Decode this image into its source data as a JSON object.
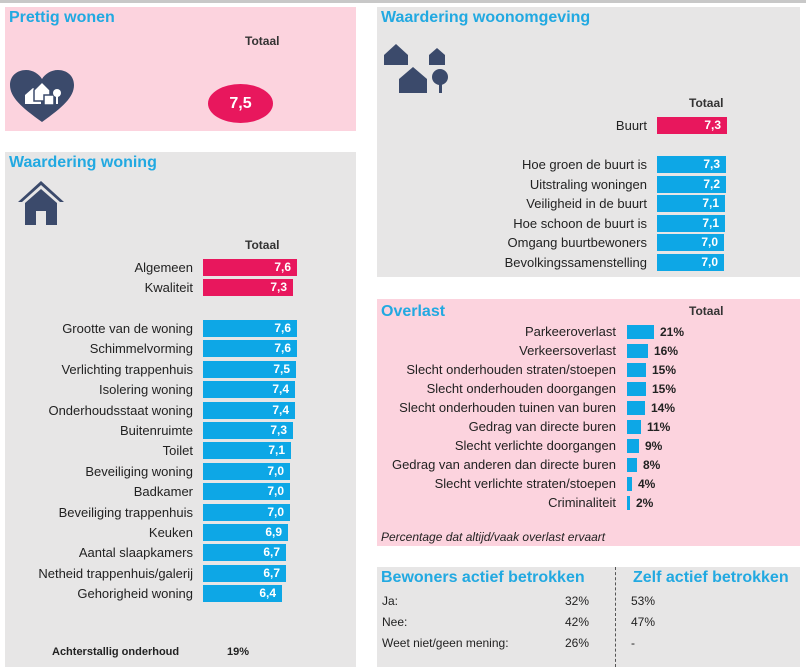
{
  "colors": {
    "title": "#22a9e1",
    "pink_bar": "#e8175d",
    "blue_bar": "#0da7e6",
    "pink_panel": "#fcd3de",
    "grey_panel": "#e7e6e6",
    "icon": "#3b4a6b"
  },
  "prettig": {
    "title": "Prettig wonen",
    "total_label": "Totaal",
    "value": "7,5",
    "icon": "heart-houses-icon"
  },
  "woning": {
    "title": "Waardering woning",
    "icon": "house-icon",
    "total_label": "Totaal",
    "top": [
      {
        "label": "Algemeen",
        "value": "7,6"
      },
      {
        "label": "Kwaliteit",
        "value": "7,3"
      }
    ],
    "items": [
      {
        "label": "Grootte van de woning",
        "value": "7,6"
      },
      {
        "label": "Schimmelvorming",
        "value": "7,6"
      },
      {
        "label": "Verlichting trappenhuis",
        "value": "7,5"
      },
      {
        "label": "Isolering woning",
        "value": "7,4"
      },
      {
        "label": "Onderhoudsstaat woning",
        "value": "7,4"
      },
      {
        "label": "Buitenruimte",
        "value": "7,3"
      },
      {
        "label": "Toilet",
        "value": "7,1"
      },
      {
        "label": "Beveiliging woning",
        "value": "7,0"
      },
      {
        "label": "Badkamer",
        "value": "7,0"
      },
      {
        "label": "Beveiliging trappenhuis",
        "value": "7,0"
      },
      {
        "label": "Keuken",
        "value": "6,9"
      },
      {
        "label": "Aantal slaapkamers",
        "value": "6,7"
      },
      {
        "label": "Netheid trappenhuis/galerij",
        "value": "6,7"
      },
      {
        "label": "Gehorigheid woning",
        "value": "6,4"
      }
    ],
    "footer_label": "Achterstallig onderhoud",
    "footer_value": "19%"
  },
  "omgeving": {
    "title": "Waardering woonomgeving",
    "icon": "neighbourhood-icon",
    "total_label": "Totaal",
    "top": {
      "label": "Buurt",
      "value": "7,3"
    },
    "items": [
      {
        "label": "Hoe groen de buurt is",
        "value": "7,3"
      },
      {
        "label": "Uitstraling woningen",
        "value": "7,2"
      },
      {
        "label": "Veiligheid in de buurt",
        "value": "7,1"
      },
      {
        "label": "Hoe schoon de buurt is",
        "value": "7,1"
      },
      {
        "label": "Omgang buurtbewoners",
        "value": "7,0"
      },
      {
        "label": "Bevolkingssamenstelling",
        "value": "7,0"
      }
    ]
  },
  "overlast": {
    "title": "Overlast",
    "total_label": "Totaal",
    "items": [
      {
        "label": "Parkeeroverlast",
        "value": "21%",
        "pct": 21
      },
      {
        "label": "Verkeersoverlast",
        "value": "16%",
        "pct": 16
      },
      {
        "label": "Slecht onderhouden straten/stoepen",
        "value": "15%",
        "pct": 15
      },
      {
        "label": "Slecht onderhouden doorgangen",
        "value": "15%",
        "pct": 15
      },
      {
        "label": "Slecht onderhouden tuinen van buren",
        "value": "14%",
        "pct": 14
      },
      {
        "label": "Gedrag van directe buren",
        "value": "11%",
        "pct": 11
      },
      {
        "label": "Slecht verlichte doorgangen",
        "value": "9%",
        "pct": 9
      },
      {
        "label": "Gedrag van anderen dan directe buren",
        "value": "8%",
        "pct": 8
      },
      {
        "label": "Slecht verlichte straten/stoepen",
        "value": "4%",
        "pct": 4
      },
      {
        "label": "Criminaliteit",
        "value": "2%",
        "pct": 2
      }
    ],
    "note": "Percentage dat altijd/vaak overlast ervaart"
  },
  "betrokken": {
    "title1": "Bewoners actief betrokken",
    "title2": "Zelf actief betrokken",
    "rows": [
      {
        "label": "Ja:",
        "v1": "32%",
        "v2": "53%"
      },
      {
        "label": "Nee:",
        "v1": "42%",
        "v2": "47%"
      },
      {
        "label": "Weet niet/geen mening:",
        "v1": "26%",
        "v2": "-"
      }
    ]
  }
}
